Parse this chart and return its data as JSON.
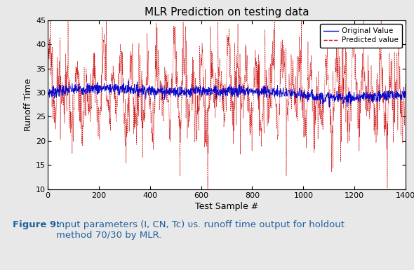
{
  "title": "MLR Prediction on testing data",
  "xlabel": "Test Sample #",
  "ylabel": "Runoff Time",
  "xlim": [
    0,
    1400
  ],
  "ylim": [
    10,
    45
  ],
  "yticks": [
    10,
    15,
    20,
    25,
    30,
    35,
    40,
    45
  ],
  "xticks": [
    0,
    200,
    400,
    600,
    800,
    1000,
    1200,
    1400
  ],
  "n_samples": 1400,
  "original_mean": 30.0,
  "predicted_mean": 30.0,
  "original_color": "#0000CC",
  "predicted_color": "#CC0000",
  "legend_original": "Original Value",
  "legend_predicted": "Predicted value",
  "bg_color": "#e8e8e8",
  "plot_bg_color": "#ffffff",
  "title_fontsize": 11,
  "axis_fontsize": 9,
  "tick_fontsize": 8,
  "legend_fontsize": 7.5,
  "caption_fontsize": 9.5
}
